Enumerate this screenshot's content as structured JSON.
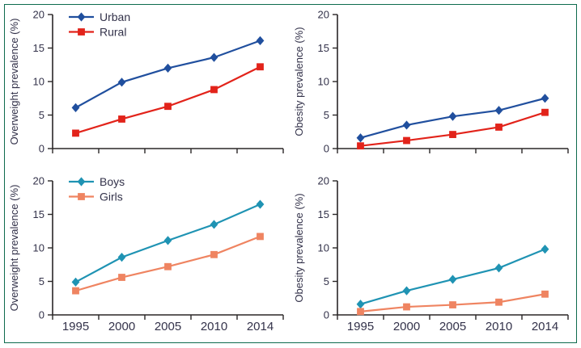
{
  "figure": {
    "background": "#ffffff",
    "border_color": "#0e6b4e",
    "text_color": "#33324a",
    "axis_color": "#2a2627"
  },
  "chart_data": [
    {
      "id": "overweight-urban-rural",
      "type": "line",
      "position": "top-left",
      "title": "",
      "xlabel": "",
      "ylabel": "Overweight prevalence (%)",
      "ylim": [
        0,
        20
      ],
      "yticks": [
        0,
        5,
        10,
        15,
        20
      ],
      "categories": [
        "1995",
        "2000",
        "2005",
        "2010",
        "2014"
      ],
      "show_x_labels": false,
      "grid": false,
      "legend": true,
      "legend_position": "top-left-inside",
      "series": [
        {
          "name": "Urban",
          "marker": "diamond",
          "color": "#204f9e",
          "values": [
            6.1,
            9.9,
            12.0,
            13.6,
            16.1
          ]
        },
        {
          "name": "Rural",
          "marker": "square",
          "color": "#e2231a",
          "values": [
            2.3,
            4.4,
            6.3,
            8.8,
            12.2
          ]
        }
      ]
    },
    {
      "id": "obesity-urban-rural",
      "type": "line",
      "position": "top-right",
      "title": "",
      "xlabel": "",
      "ylabel": "Obesity prevalence (%)",
      "ylim": [
        0,
        20
      ],
      "yticks": [
        0,
        5,
        10,
        15,
        20
      ],
      "categories": [
        "1995",
        "2000",
        "2005",
        "2010",
        "2014"
      ],
      "show_x_labels": false,
      "grid": false,
      "legend": false,
      "series": [
        {
          "name": "Urban",
          "marker": "diamond",
          "color": "#204f9e",
          "values": [
            1.6,
            3.5,
            4.8,
            5.7,
            7.5
          ]
        },
        {
          "name": "Rural",
          "marker": "square",
          "color": "#e2231a",
          "values": [
            0.4,
            1.2,
            2.1,
            3.2,
            5.4
          ]
        }
      ]
    },
    {
      "id": "overweight-boys-girls",
      "type": "line",
      "position": "bottom-left",
      "title": "",
      "xlabel": "",
      "ylabel": "Overweight prevalence (%)",
      "ylim": [
        0,
        20
      ],
      "yticks": [
        0,
        5,
        10,
        15,
        20
      ],
      "categories": [
        "1995",
        "2000",
        "2005",
        "2010",
        "2014"
      ],
      "show_x_labels": true,
      "grid": false,
      "legend": true,
      "legend_position": "top-left-inside",
      "series": [
        {
          "name": "Boys",
          "marker": "diamond",
          "color": "#1f93b3",
          "values": [
            4.9,
            8.6,
            11.1,
            13.5,
            16.5
          ]
        },
        {
          "name": "Girls",
          "marker": "square",
          "color": "#ef8461",
          "values": [
            3.6,
            5.6,
            7.2,
            9.0,
            11.7
          ]
        }
      ]
    },
    {
      "id": "obesity-boys-girls",
      "type": "line",
      "position": "bottom-right",
      "title": "",
      "xlabel": "",
      "ylabel": "Obesity prevalence (%)",
      "ylim": [
        0,
        20
      ],
      "yticks": [
        0,
        5,
        10,
        15,
        20
      ],
      "categories": [
        "1995",
        "2000",
        "2005",
        "2010",
        "2014"
      ],
      "show_x_labels": true,
      "grid": false,
      "legend": false,
      "series": [
        {
          "name": "Boys",
          "marker": "diamond",
          "color": "#1f93b3",
          "values": [
            1.6,
            3.6,
            5.3,
            7.0,
            9.8
          ]
        },
        {
          "name": "Girls",
          "marker": "square",
          "color": "#ef8461",
          "values": [
            0.5,
            1.2,
            1.5,
            1.9,
            3.1
          ]
        }
      ]
    }
  ]
}
